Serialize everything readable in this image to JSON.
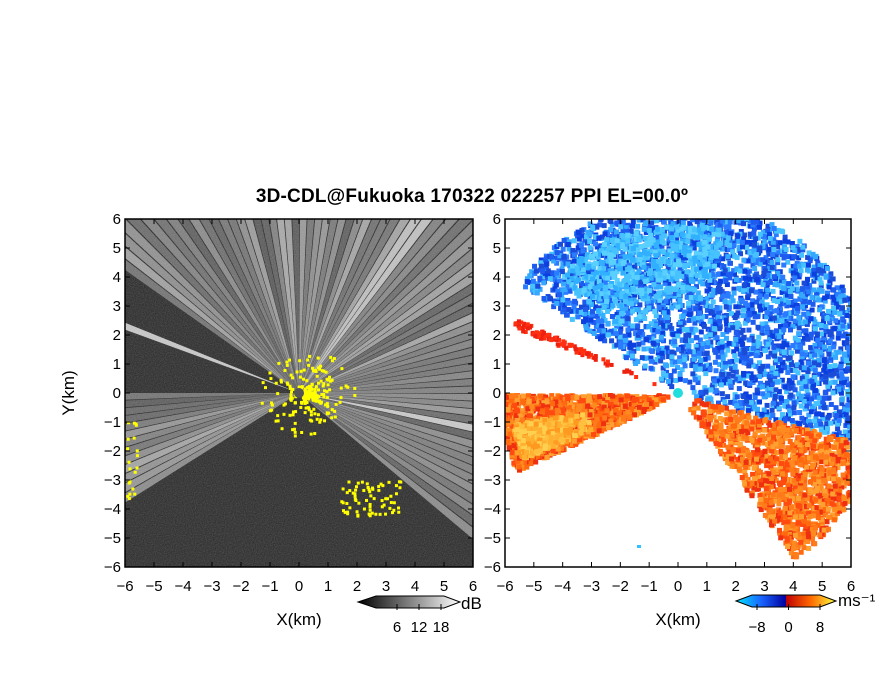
{
  "title": "3D-CDL@Fukuoka 170322 022257 PPI EL=00.0º",
  "chart_data": [
    {
      "type": "heatmap",
      "panel": "reflectivity",
      "xlabel": "X(km)",
      "ylabel": "Y(km)",
      "xlim": [
        -6,
        6
      ],
      "ylim": [
        -6,
        6
      ],
      "x_ticks": [
        "−6",
        "−5",
        "−4",
        "−3",
        "−2",
        "−1",
        "0",
        "1",
        "2",
        "3",
        "4",
        "5",
        "6"
      ],
      "y_ticks": [
        "6",
        "5",
        "4",
        "3",
        "2",
        "1",
        "0",
        "−1",
        "−2",
        "−3",
        "−4",
        "−5",
        "−6"
      ],
      "colorbar": {
        "unit": "dB",
        "ticks": [
          "6",
          "12",
          "18"
        ],
        "colormap": "grayscale",
        "range": [
          0,
          24
        ]
      },
      "highlight_color": "#ffff00",
      "background_color": "#262626",
      "bright_beam_color": "#e6e6e6"
    },
    {
      "type": "heatmap",
      "panel": "doppler velocity",
      "xlabel": "X(km)",
      "xlim": [
        -6,
        6
      ],
      "ylim": [
        -6,
        6
      ],
      "x_ticks": [
        "−6",
        "−5",
        "−4",
        "−3",
        "−2",
        "−1",
        "0",
        "1",
        "2",
        "3",
        "4",
        "5",
        "6"
      ],
      "y_ticks": [
        "6",
        "5",
        "4",
        "3",
        "2",
        "1",
        "0",
        "−1",
        "−2",
        "−3",
        "−4",
        "−5",
        "−6"
      ],
      "colorbar": {
        "unit": "ms⁻¹",
        "ticks": [
          "−8",
          "0",
          "8"
        ],
        "colormap": "cyan-blue-red-orange-yellow",
        "range": [
          -12,
          12
        ]
      },
      "approaching_color": "#1e5cf0",
      "receding_color": "#ff7a1a"
    }
  ]
}
